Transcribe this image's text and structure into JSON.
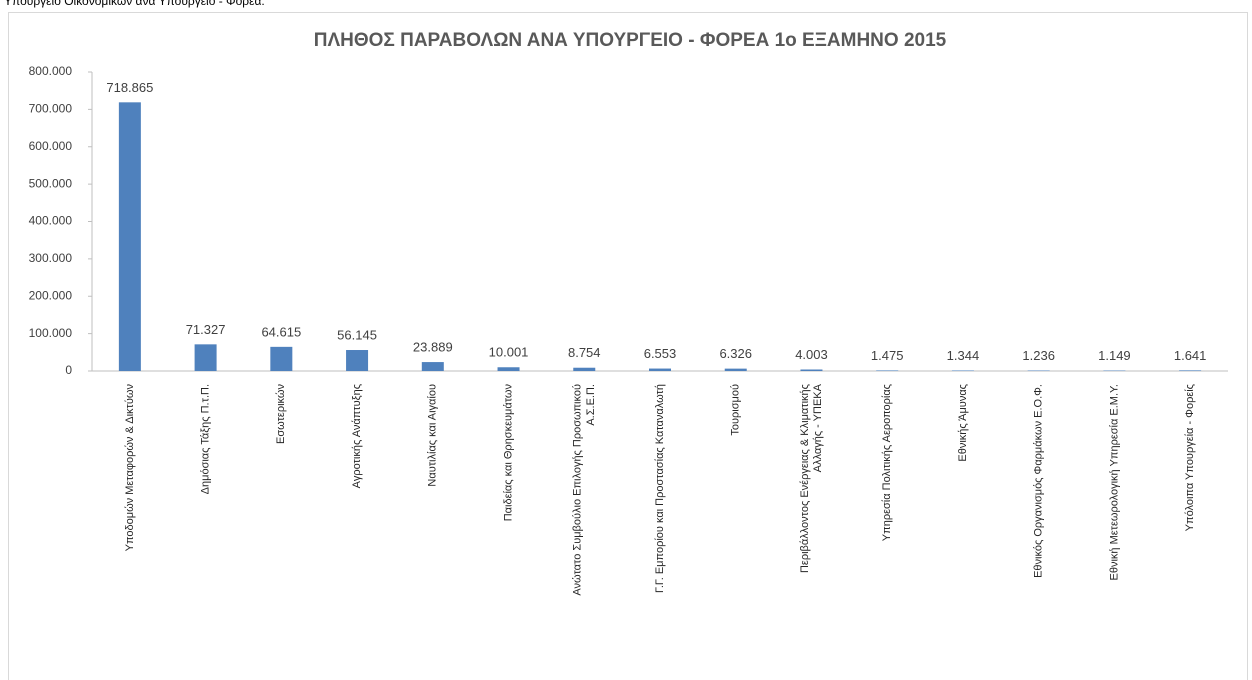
{
  "caption": "Υπουργείο Οικονομικών ανά Υπουργείο - Φορέα.",
  "chart_data": {
    "type": "bar",
    "title": "ΠΛΗΘΟΣ ΠΑΡΑΒΟΛΩΝ ΑΝΑ ΥΠΟΥΡΓΕΙΟ - ΦΟΡΕΑ 1ο ΕΞΑΜΗΝΟ 2015",
    "categories": [
      "Υποδομών Μεταφορών & Δικτύων",
      "Δημόσιας Τάξης Π.τ.Π.",
      "Εσωτερικών",
      "Αγροτικής Ανάπτυξης",
      "Ναυτιλίας και Αιγαίου",
      "Παιδείας και Θρησκευμάτων",
      "Ανώτατο Συμβούλιο Επιλογής Προσωπικού Α.Σ.Ε.Π.",
      "Γ.Γ. Εμπορίου και Προστασίας Καταναλωτή",
      "Τουρισμού",
      "Περιβάλλοντος Ενέργειας & Κλιματικής Αλλαγής - ΥΠΕΚΑ",
      "Υπηρεσία Πολιτικής Αεροπορίας",
      "Εθνικής Άμυνας",
      "Εθνικός Οργανισμός Φαρμάκων Ε.Ο.Φ.",
      "Εθνική Μετεωρολογική Υπηρεσία Ε.Μ.Υ.",
      "Υπόλοιπα Υπουργεία - Φορείς"
    ],
    "values": [
      718865,
      71327,
      64615,
      56145,
      23889,
      10001,
      8754,
      6553,
      6326,
      4003,
      1475,
      1344,
      1236,
      1149,
      1641
    ],
    "value_labels": [
      "718.865",
      "71.327",
      "64.615",
      "56.145",
      "23.889",
      "10.001",
      "8.754",
      "6.553",
      "6.326",
      "4.003",
      "1.475",
      "1.344",
      "1.236",
      "1.149",
      "1.641"
    ],
    "color": "#4f81bd",
    "ylim": [
      0,
      800000
    ],
    "yticks": [
      0,
      {
        "value": 100000,
        "label": "100.000"
      },
      {
        "value": 200000,
        "label": "200.000"
      },
      {
        "value": 300000,
        "label": "300.000"
      },
      {
        "value": 400000,
        "label": "400.000"
      },
      {
        "value": 500000,
        "label": "500.000"
      },
      {
        "value": 600000,
        "label": "600.000"
      },
      {
        "value": 700000,
        "label": "700.000"
      },
      {
        "value": 800000,
        "label": "800.000"
      }
    ],
    "grid": false
  }
}
